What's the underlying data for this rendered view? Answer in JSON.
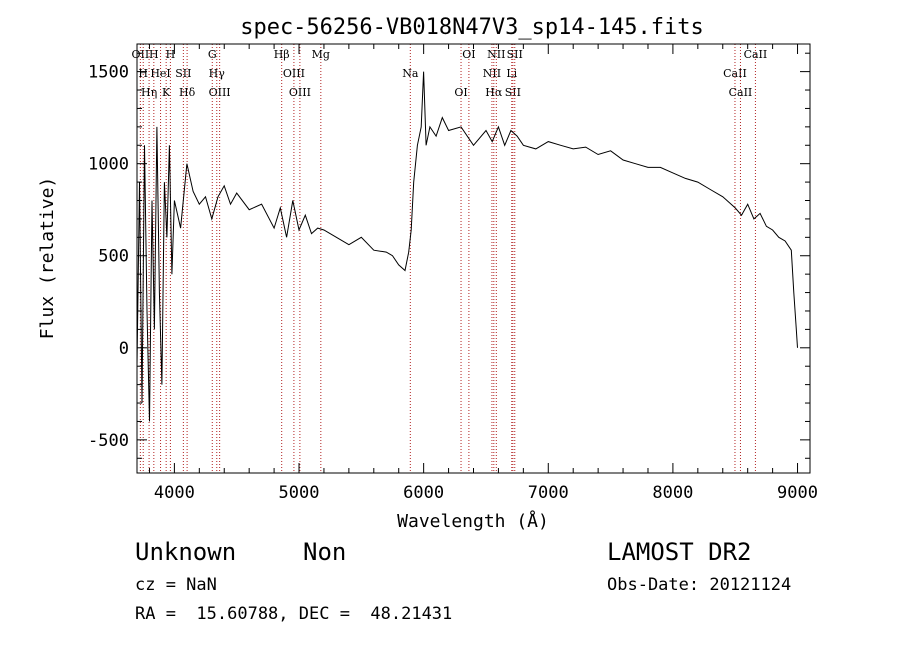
{
  "chart_data": {
    "type": "line",
    "title": "spec-56256-VB018N47V3_sp14-145.fits",
    "xlabel": "Wavelength (Å)",
    "ylabel": "Flux (relative)",
    "xlim": [
      3700,
      9100
    ],
    "ylim": [
      -680,
      1650
    ],
    "xticks": [
      4000,
      5000,
      6000,
      7000,
      8000,
      9000
    ],
    "yticks": [
      -500,
      0,
      500,
      1000,
      1500
    ],
    "grid": false,
    "series": [
      {
        "x": [
          3700,
          3720,
          3740,
          3760,
          3780,
          3800,
          3820,
          3840,
          3860,
          3880,
          3900,
          3920,
          3940,
          3960,
          3980,
          4000,
          4050,
          4100,
          4150,
          4200,
          4250,
          4300,
          4350,
          4400,
          4450,
          4500,
          4600,
          4700,
          4800,
          4850,
          4900,
          4950,
          5000,
          5050,
          5100,
          5150,
          5200,
          5300,
          5400,
          5500,
          5600,
          5700,
          5750,
          5800,
          5850,
          5880,
          5900,
          5920,
          5950,
          5980,
          6000,
          6020,
          6050,
          6100,
          6150,
          6200,
          6300,
          6400,
          6500,
          6550,
          6600,
          6650,
          6700,
          6750,
          6800,
          6900,
          7000,
          7100,
          7200,
          7300,
          7400,
          7500,
          7600,
          7700,
          7800,
          7900,
          8000,
          8100,
          8200,
          8300,
          8400,
          8500,
          8550,
          8600,
          8650,
          8700,
          8750,
          8800,
          8850,
          8900,
          8950,
          8970,
          8990,
          9000
        ],
        "y": [
          -100,
          900,
          -300,
          1100,
          200,
          -400,
          800,
          100,
          1200,
          300,
          -200,
          900,
          600,
          1100,
          400,
          800,
          650,
          1000,
          850,
          780,
          820,
          700,
          820,
          880,
          780,
          840,
          750,
          780,
          650,
          760,
          600,
          800,
          640,
          720,
          620,
          650,
          640,
          600,
          560,
          600,
          530,
          520,
          500,
          450,
          420,
          520,
          640,
          900,
          1100,
          1200,
          1500,
          1100,
          1200,
          1150,
          1250,
          1180,
          1200,
          1100,
          1180,
          1120,
          1200,
          1100,
          1180,
          1150,
          1100,
          1080,
          1120,
          1100,
          1080,
          1090,
          1050,
          1070,
          1020,
          1000,
          980,
          980,
          950,
          920,
          900,
          860,
          820,
          760,
          720,
          780,
          700,
          730,
          660,
          640,
          600,
          580,
          530,
          300,
          100,
          0
        ]
      }
    ],
    "lines": [
      {
        "w": 3727,
        "label": "OII"
      },
      {
        "w": 3750,
        "label": "H"
      },
      {
        "w": 3797,
        "label": "Hη"
      },
      {
        "w": 3835,
        "label": "H"
      },
      {
        "w": 3889,
        "label": "HeI"
      },
      {
        "w": 3934,
        "label": "K"
      },
      {
        "w": 3968,
        "label": "H"
      },
      {
        "w": 4072,
        "label": "SII"
      },
      {
        "w": 4102,
        "label": "Hδ"
      },
      {
        "w": 4304,
        "label": "G"
      },
      {
        "w": 4340,
        "label": "Hγ"
      },
      {
        "w": 4363,
        "label": "OIII"
      },
      {
        "w": 4861,
        "label": "Hβ"
      },
      {
        "w": 4959,
        "label": "OIII"
      },
      {
        "w": 5007,
        "label": "OIII"
      },
      {
        "w": 5175,
        "label": "Mg"
      },
      {
        "w": 5893,
        "label": "Na"
      },
      {
        "w": 6300,
        "label": "OI"
      },
      {
        "w": 6363,
        "label": "OI"
      },
      {
        "w": 6548,
        "label": "NII"
      },
      {
        "w": 6563,
        "label": "Hα"
      },
      {
        "w": 6583,
        "label": "NII"
      },
      {
        "w": 6707,
        "label": "Li"
      },
      {
        "w": 6716,
        "label": "SII"
      },
      {
        "w": 6731,
        "label": "SII"
      },
      {
        "w": 8498,
        "label": "CaII"
      },
      {
        "w": 8542,
        "label": "CaII"
      },
      {
        "w": 8662,
        "label": "CaII"
      }
    ]
  },
  "info": {
    "class": "Unknown",
    "subclass": "Non",
    "survey": "LAMOST DR2",
    "cz": "cz = NaN",
    "obsdate": "Obs-Date: 20121124",
    "radec": "RA =  15.60788, DEC =  48.21431"
  },
  "colors": {
    "spectrum": "#000000",
    "lines": "#b22222",
    "axes": "#000000"
  }
}
